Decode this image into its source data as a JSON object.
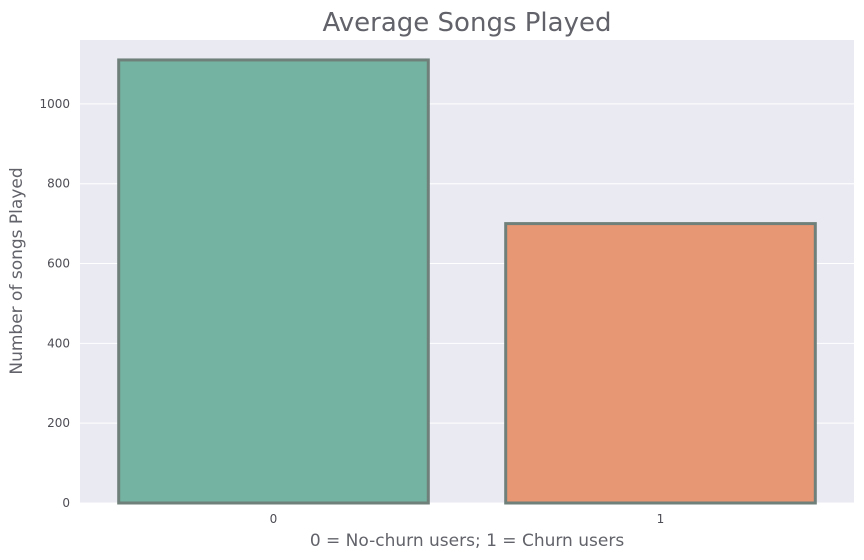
{
  "chart_data": {
    "type": "bar",
    "title": "Average Songs Played",
    "xlabel": "0 = No-churn users; 1 = Churn users",
    "ylabel": "Number of songs Played",
    "categories": [
      "0",
      "1"
    ],
    "values": [
      1110,
      700
    ],
    "ylim": [
      0,
      1160
    ],
    "yticks": [
      0,
      200,
      400,
      600,
      800,
      1000
    ],
    "ytick_labels": [
      "0",
      "200",
      "400",
      "600",
      "800",
      "1000"
    ],
    "grid": true,
    "legend": "none",
    "colors": {
      "plot_background": "#eaeaf2",
      "grid": "#ffffff",
      "bar_fills": [
        "#74b3a1",
        "#e89774"
      ],
      "bar_edge": "#6f7f79",
      "text": "#62636a"
    }
  }
}
